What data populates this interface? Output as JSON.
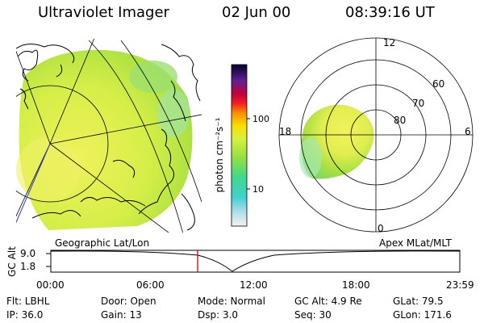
{
  "header": {
    "instrument": "Ultraviolet Imager",
    "date": "02 Jun 00",
    "time": "08:39:16 UT"
  },
  "colorbar": {
    "unit_label": "photon cm⁻²s⁻¹",
    "ticks": [
      {
        "label": "100",
        "value": 100
      },
      {
        "label": "10",
        "value": 10
      }
    ]
  },
  "polar_plot": {
    "mlt_labels": {
      "top": "12",
      "left": "18",
      "right": "6",
      "bottom": "0"
    },
    "lat_labels": [
      "60",
      "70",
      "80"
    ]
  },
  "labels": {
    "geographic": "Geographic Lat/Lon",
    "apex": "Apex MLat/MLT"
  },
  "altitude_plot": {
    "axis_label": "GC Alt",
    "y_ticks": [
      "9.0",
      "1.8"
    ],
    "x_ticks": [
      "00:00",
      "06:00",
      "12:00",
      "18:00",
      "23:59"
    ]
  },
  "info": {
    "filter": "Flt:  LBHL",
    "ip": "IP:  36.0",
    "door": "Door:  Open",
    "gain": "Gain:  13",
    "mode": "Mode:  Normal",
    "dsp": "Dsp:      3.0",
    "gc_alt": "GC Alt:  4.9 Re",
    "seq": "Seq:  30",
    "glat": "GLat:   79.5",
    "glon": "GLon:  171.6"
  },
  "colors": {
    "image_green": "#b6e63c",
    "image_yellow": "#e8f050",
    "orbit_marker": "#d00000"
  }
}
